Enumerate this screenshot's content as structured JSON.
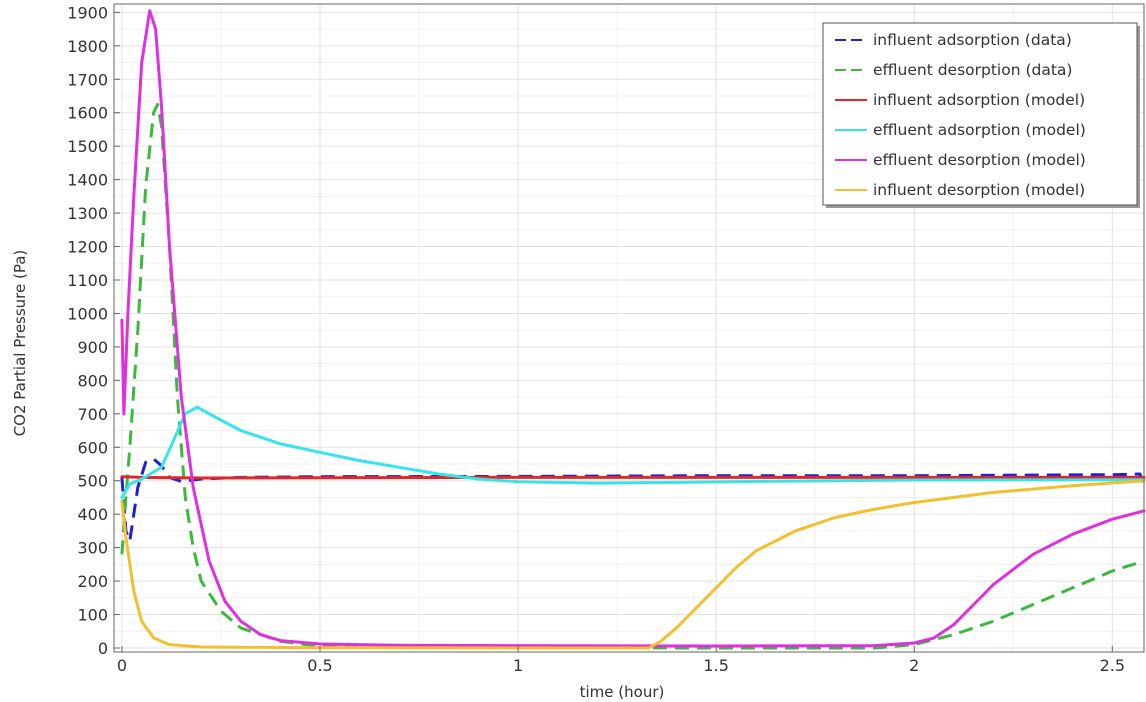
{
  "chart_data": {
    "type": "line",
    "title": "",
    "xlabel": "time (hour)",
    "ylabel": "CO2 Partial Pressure (Pa)",
    "xlim": [
      -0.02,
      2.58
    ],
    "ylim": [
      -12,
      1925
    ],
    "xticks": [
      0,
      0.5,
      1,
      1.5,
      2,
      2.5
    ],
    "xtick_labels": [
      "0",
      "0.5",
      "1",
      "1.5",
      "2",
      "2.5"
    ],
    "yticks": [
      0,
      100,
      200,
      300,
      400,
      500,
      600,
      700,
      800,
      900,
      1000,
      1100,
      1200,
      1300,
      1400,
      1500,
      1600,
      1700,
      1800,
      1900
    ],
    "ytick_labels": [
      "0",
      "100",
      "200",
      "300",
      "400",
      "500",
      "600",
      "700",
      "800",
      "900",
      "1000",
      "1100",
      "1200",
      "1300",
      "1400",
      "1500",
      "1600",
      "1700",
      "1800",
      "1900"
    ],
    "grid": true,
    "legend_position": "top-right",
    "series": [
      {
        "name": "influent adsorption (data)",
        "color": "#1f1fd6",
        "dash": "dashed",
        "points": [
          [
            0,
            510
          ],
          [
            0.01,
            350
          ],
          [
            0.02,
            320
          ],
          [
            0.04,
            480
          ],
          [
            0.06,
            555
          ],
          [
            0.08,
            565
          ],
          [
            0.1,
            545
          ],
          [
            0.12,
            510
          ],
          [
            0.15,
            498
          ],
          [
            0.2,
            505
          ],
          [
            0.3,
            510
          ],
          [
            0.5,
            512
          ],
          [
            1.0,
            513
          ],
          [
            1.5,
            515
          ],
          [
            2.0,
            515
          ],
          [
            2.5,
            518
          ],
          [
            2.57,
            520
          ],
          [
            2.58,
            480
          ]
        ]
      },
      {
        "name": "effluent desorption (data)",
        "color": "#3cb83c",
        "dash": "dashed",
        "points": [
          [
            0,
            280
          ],
          [
            0.01,
            450
          ],
          [
            0.02,
            600
          ],
          [
            0.04,
            950
          ],
          [
            0.06,
            1380
          ],
          [
            0.08,
            1600
          ],
          [
            0.09,
            1625
          ],
          [
            0.1,
            1560
          ],
          [
            0.12,
            1200
          ],
          [
            0.14,
            750
          ],
          [
            0.16,
            450
          ],
          [
            0.18,
            300
          ],
          [
            0.2,
            200
          ],
          [
            0.25,
            110
          ],
          [
            0.3,
            60
          ],
          [
            0.4,
            20
          ],
          [
            0.5,
            5
          ],
          [
            0.8,
            2
          ],
          [
            1.0,
            1
          ],
          [
            1.5,
            0
          ],
          [
            1.9,
            0
          ],
          [
            2.0,
            10
          ],
          [
            2.1,
            40
          ],
          [
            2.2,
            80
          ],
          [
            2.3,
            130
          ],
          [
            2.4,
            180
          ],
          [
            2.5,
            230
          ],
          [
            2.58,
            260
          ]
        ]
      },
      {
        "name": "influent adsorption (model)",
        "color": "#e32727",
        "dash": "solid",
        "points": [
          [
            0,
            512
          ],
          [
            0.05,
            510
          ],
          [
            0.2,
            508
          ],
          [
            0.5,
            509
          ],
          [
            1.0,
            510
          ],
          [
            1.5,
            510
          ],
          [
            2.0,
            510
          ],
          [
            2.58,
            510
          ]
        ]
      },
      {
        "name": "effluent adsorption (model)",
        "color": "#35e5ea",
        "dash": "solid",
        "points": [
          [
            0,
            450
          ],
          [
            0.02,
            490
          ],
          [
            0.05,
            505
          ],
          [
            0.1,
            540
          ],
          [
            0.13,
            620
          ],
          [
            0.16,
            700
          ],
          [
            0.19,
            720
          ],
          [
            0.22,
            700
          ],
          [
            0.3,
            650
          ],
          [
            0.4,
            610
          ],
          [
            0.5,
            585
          ],
          [
            0.6,
            560
          ],
          [
            0.7,
            540
          ],
          [
            0.8,
            520
          ],
          [
            0.9,
            505
          ],
          [
            1.0,
            497
          ],
          [
            1.2,
            493
          ],
          [
            1.4,
            495
          ],
          [
            1.6,
            498
          ],
          [
            1.8,
            500
          ],
          [
            2.0,
            502
          ],
          [
            2.58,
            503
          ]
        ]
      },
      {
        "name": "effluent desorption (model)",
        "color": "#e02fe0",
        "dash": "solid",
        "points": [
          [
            0,
            980
          ],
          [
            0.005,
            700
          ],
          [
            0.015,
            1000
          ],
          [
            0.03,
            1350
          ],
          [
            0.05,
            1750
          ],
          [
            0.07,
            1905
          ],
          [
            0.085,
            1850
          ],
          [
            0.1,
            1620
          ],
          [
            0.12,
            1200
          ],
          [
            0.15,
            750
          ],
          [
            0.18,
            480
          ],
          [
            0.22,
            260
          ],
          [
            0.26,
            140
          ],
          [
            0.3,
            80
          ],
          [
            0.35,
            40
          ],
          [
            0.4,
            22
          ],
          [
            0.5,
            12
          ],
          [
            0.7,
            8
          ],
          [
            1.0,
            7
          ],
          [
            1.5,
            6
          ],
          [
            1.9,
            7
          ],
          [
            2.0,
            15
          ],
          [
            2.05,
            30
          ],
          [
            2.1,
            70
          ],
          [
            2.15,
            130
          ],
          [
            2.2,
            190
          ],
          [
            2.3,
            280
          ],
          [
            2.4,
            340
          ],
          [
            2.5,
            385
          ],
          [
            2.58,
            410
          ]
        ]
      },
      {
        "name": "influent desorption (model)",
        "color": "#f4bf2f",
        "dash": "solid",
        "points": [
          [
            0,
            440
          ],
          [
            0.01,
            330
          ],
          [
            0.03,
            170
          ],
          [
            0.05,
            80
          ],
          [
            0.08,
            30
          ],
          [
            0.12,
            10
          ],
          [
            0.2,
            3
          ],
          [
            0.5,
            1
          ],
          [
            1.0,
            0
          ],
          [
            1.33,
            0
          ],
          [
            1.36,
            20
          ],
          [
            1.4,
            60
          ],
          [
            1.45,
            120
          ],
          [
            1.5,
            180
          ],
          [
            1.55,
            240
          ],
          [
            1.6,
            290
          ],
          [
            1.7,
            350
          ],
          [
            1.8,
            390
          ],
          [
            1.9,
            415
          ],
          [
            2.0,
            435
          ],
          [
            2.2,
            465
          ],
          [
            2.4,
            485
          ],
          [
            2.58,
            500
          ]
        ]
      }
    ]
  }
}
